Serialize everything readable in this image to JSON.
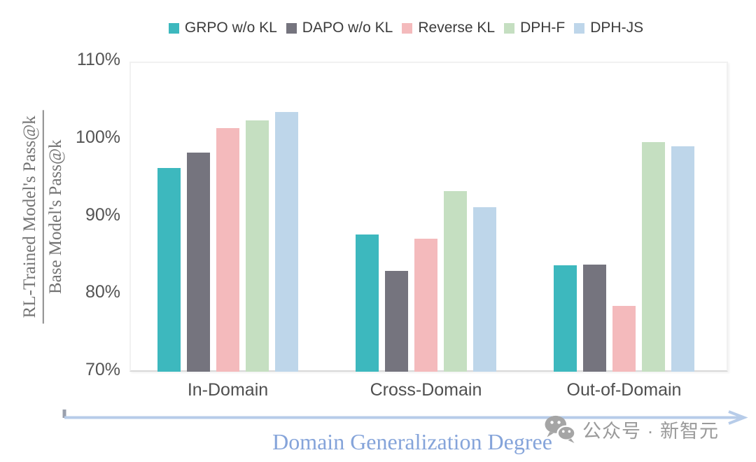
{
  "chart_data": {
    "type": "bar",
    "title": "",
    "categories": [
      "In-Domain",
      "Cross-Domain",
      "Out-of-Domain"
    ],
    "series": [
      {
        "name": "GRPO w/o KL",
        "color": "#3db8be",
        "values": [
          96.3,
          87.7,
          83.7
        ]
      },
      {
        "name": "DAPO w/o KL",
        "color": "#75747e",
        "values": [
          98.3,
          83.0,
          83.8
        ]
      },
      {
        "name": "Reverse KL",
        "color": "#f4babc",
        "values": [
          101.4,
          87.2,
          78.5
        ]
      },
      {
        "name": "DPH-F",
        "color": "#c5dfc1",
        "values": [
          102.4,
          93.3,
          99.6
        ]
      },
      {
        "name": "DPH-JS",
        "color": "#bed6ea",
        "values": [
          103.5,
          91.2,
          99.1
        ]
      }
    ],
    "ylabel_fraction": {
      "numerator": "RL-Trained Model's Pass@k",
      "denominator": "Base Model's Pass@k"
    },
    "xlabel": "Domain Generalization Degree",
    "ylim": [
      70,
      110
    ],
    "yticks": [
      {
        "value": 110,
        "label": "110%"
      },
      {
        "value": 100,
        "label": "100%"
      },
      {
        "value": 90,
        "label": "90%"
      },
      {
        "value": 80,
        "label": "80%"
      },
      {
        "value": 70,
        "label": "70%"
      }
    ],
    "grid": false,
    "legend_position": "top"
  },
  "x_axis": {
    "title_color": "#85a4da",
    "arrow_color": "#b7cce9",
    "arrow_start_tick_color": "#9aa0ad"
  },
  "watermark": {
    "text": "公众号 · 新智元",
    "color": "#9a9a9a",
    "icon": "wechat-bubbles"
  }
}
